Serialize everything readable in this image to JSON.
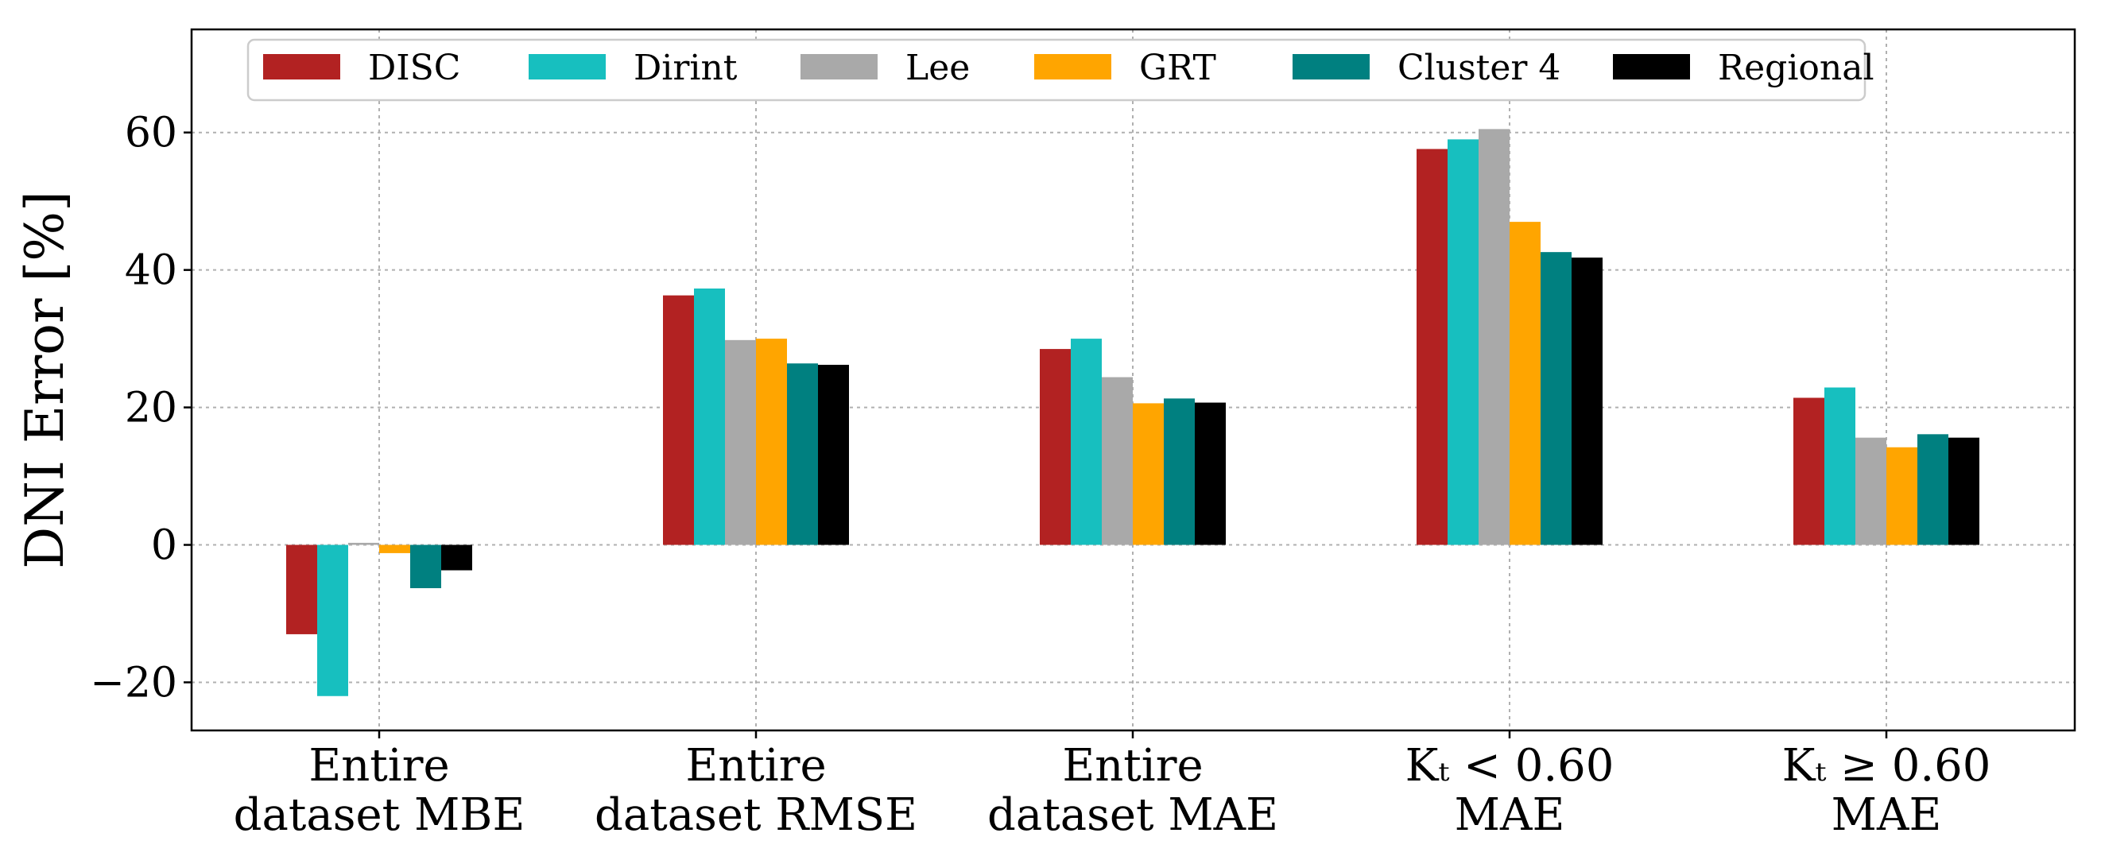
{
  "chart_data": {
    "type": "bar",
    "title": "",
    "xlabel": "",
    "ylabel": "DNI Error [%]",
    "ylim": [
      -27,
      75
    ],
    "yticks": [
      -20,
      0,
      20,
      40,
      60
    ],
    "ytick_labels": [
      "−20",
      "0",
      "20",
      "40",
      "60"
    ],
    "grid": true,
    "legend_position": "top",
    "categories": [
      [
        "Entire",
        "dataset MBE"
      ],
      [
        "Entire",
        "dataset RMSE"
      ],
      [
        "Entire",
        "dataset MAE"
      ],
      [
        "Kₜ < 0.60",
        "MAE"
      ],
      [
        "Kₜ ≥ 0.60",
        "MAE"
      ]
    ],
    "series": [
      {
        "name": "DISC",
        "color": "#b22222",
        "values": [
          -13.0,
          36.3,
          28.5,
          57.6,
          21.4
        ]
      },
      {
        "name": "Dirint",
        "color": "#17bfbf",
        "values": [
          -22.0,
          37.3,
          30.0,
          59.0,
          22.9
        ]
      },
      {
        "name": "Lee",
        "color": "#a9a9a9",
        "values": [
          0.3,
          29.8,
          24.4,
          60.5,
          15.6
        ]
      },
      {
        "name": "GRT",
        "color": "#ffa500",
        "values": [
          -1.2,
          30.0,
          20.6,
          47.0,
          14.2
        ]
      },
      {
        "name": "Cluster 4",
        "color": "#008080",
        "values": [
          -6.3,
          26.4,
          21.3,
          42.6,
          16.1
        ]
      },
      {
        "name": "Regional",
        "color": "#000000",
        "values": [
          -3.7,
          26.2,
          20.7,
          41.8,
          15.6
        ]
      }
    ]
  }
}
